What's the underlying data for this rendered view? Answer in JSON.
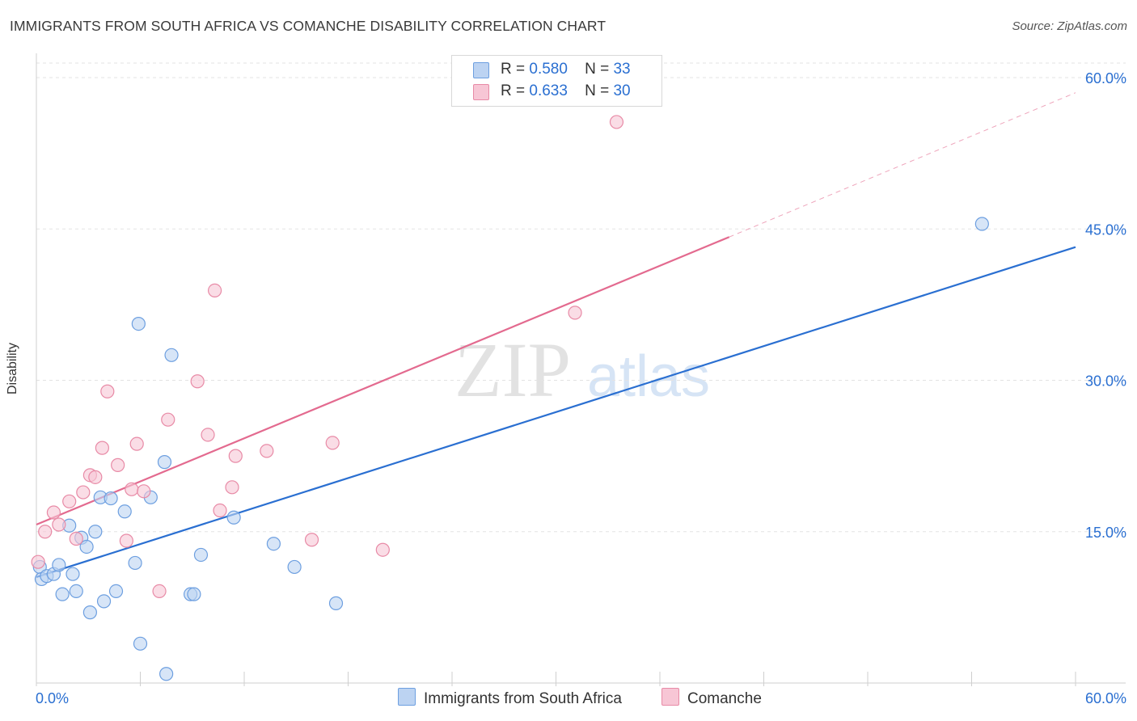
{
  "chart_data": {
    "type": "scatter",
    "title": "IMMIGRANTS FROM SOUTH AFRICA VS COMANCHE DISABILITY CORRELATION CHART",
    "source": "Source: ZipAtlas.com",
    "ylabel": "Disability",
    "xlabel": "",
    "xlim": [
      0,
      60
    ],
    "ylim": [
      0,
      60
    ],
    "x_tick_labels": [
      "0.0%",
      "60.0%"
    ],
    "y_tick_values": [
      15,
      30,
      45,
      60
    ],
    "y_tick_labels": [
      "15.0%",
      "30.0%",
      "45.0%",
      "60.0%"
    ],
    "grid": true,
    "watermark": {
      "zip": "ZIP",
      "atlas": "atlas"
    },
    "legend": {
      "position": "top-center",
      "rows": [
        {
          "r_label": "R =",
          "r_value": "0.580",
          "n_label": "N =",
          "n_value": "33"
        },
        {
          "r_label": "R =",
          "r_value": "0.633",
          "n_label": "N =",
          "n_value": "30"
        }
      ]
    },
    "series": [
      {
        "name": "Immigrants from South Africa",
        "color": "#6d9fe0",
        "fill": "#bcd3f2",
        "line_color": "#2a6fd1",
        "trend": {
          "x0": 0,
          "y0": 10.5,
          "x1": 60,
          "y1": 43.2,
          "dashed_until": null
        },
        "points": [
          [
            0.2,
            11.5
          ],
          [
            0.3,
            10.3
          ],
          [
            0.6,
            10.6
          ],
          [
            1.0,
            10.8
          ],
          [
            1.3,
            11.7
          ],
          [
            1.5,
            8.8
          ],
          [
            1.9,
            15.6
          ],
          [
            2.1,
            10.8
          ],
          [
            2.3,
            9.1
          ],
          [
            2.6,
            14.4
          ],
          [
            2.9,
            13.5
          ],
          [
            3.1,
            7.0
          ],
          [
            3.4,
            15.0
          ],
          [
            3.7,
            18.4
          ],
          [
            3.9,
            8.1
          ],
          [
            4.3,
            18.3
          ],
          [
            4.6,
            9.1
          ],
          [
            5.1,
            17.0
          ],
          [
            5.7,
            11.9
          ],
          [
            5.9,
            35.6
          ],
          [
            6.0,
            3.9
          ],
          [
            6.6,
            18.4
          ],
          [
            7.4,
            21.9
          ],
          [
            7.5,
            0.9
          ],
          [
            7.8,
            32.5
          ],
          [
            8.9,
            8.8
          ],
          [
            9.1,
            8.8
          ],
          [
            9.5,
            12.7
          ],
          [
            11.4,
            16.4
          ],
          [
            13.7,
            13.8
          ],
          [
            14.9,
            11.5
          ],
          [
            17.3,
            7.9
          ],
          [
            54.6,
            45.5
          ]
        ]
      },
      {
        "name": "Comanche",
        "color": "#e88aa6",
        "fill": "#f7c6d5",
        "line_color": "#e36a8f",
        "trend": {
          "x0": 0,
          "y0": 15.7,
          "x1": 40,
          "y1": 44.2,
          "dashed_to_x": 60,
          "dashed_to_y": 58.5
        },
        "points": [
          [
            0.1,
            12.0
          ],
          [
            0.5,
            15.0
          ],
          [
            1.0,
            16.9
          ],
          [
            1.3,
            15.7
          ],
          [
            1.9,
            18.0
          ],
          [
            2.3,
            14.3
          ],
          [
            2.7,
            18.9
          ],
          [
            3.1,
            20.6
          ],
          [
            3.4,
            20.4
          ],
          [
            3.8,
            23.3
          ],
          [
            4.1,
            28.9
          ],
          [
            4.7,
            21.6
          ],
          [
            5.2,
            14.1
          ],
          [
            5.5,
            19.2
          ],
          [
            5.8,
            23.7
          ],
          [
            6.2,
            19.0
          ],
          [
            7.1,
            9.1
          ],
          [
            7.6,
            26.1
          ],
          [
            9.3,
            29.9
          ],
          [
            9.9,
            24.6
          ],
          [
            10.3,
            38.9
          ],
          [
            10.6,
            17.1
          ],
          [
            11.3,
            19.4
          ],
          [
            11.5,
            22.5
          ],
          [
            13.3,
            23.0
          ],
          [
            15.9,
            14.2
          ],
          [
            17.1,
            23.8
          ],
          [
            20.0,
            13.2
          ],
          [
            31.1,
            36.7
          ],
          [
            33.5,
            55.6
          ]
        ]
      }
    ]
  }
}
